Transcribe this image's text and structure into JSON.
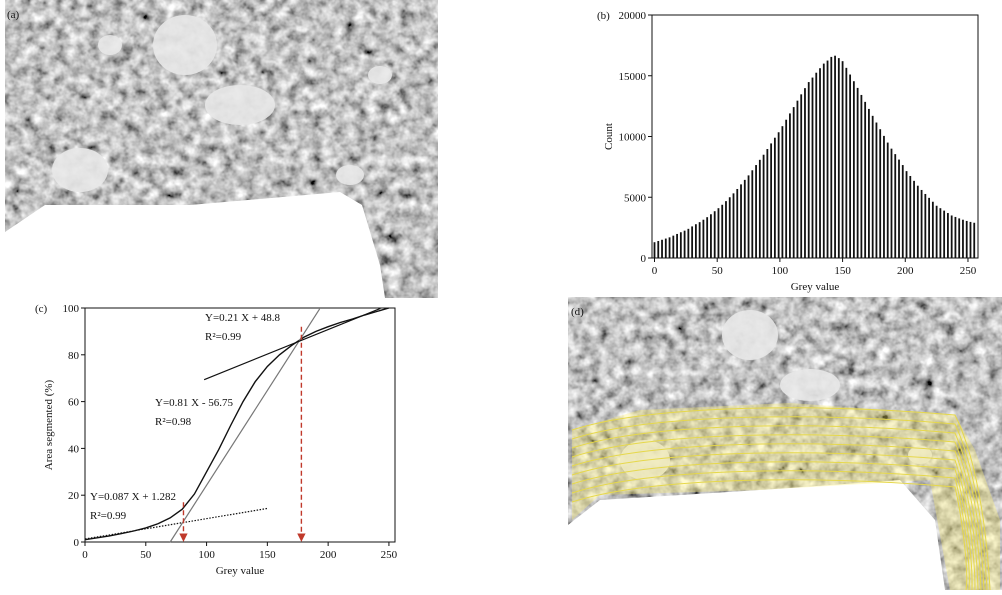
{
  "panels": {
    "a": "(a)",
    "d": "(d)"
  },
  "chart_data": [
    {
      "type": "bar",
      "panel_label": "(b)",
      "xlabel": "Grey value",
      "ylabel": "Count",
      "color": "#111111",
      "xlim": [
        -2,
        258
      ],
      "ylim": [
        0,
        20000
      ],
      "xticks": [
        0,
        50,
        100,
        150,
        200,
        250
      ],
      "yticks": [
        0,
        5000,
        10000,
        15000,
        20000
      ],
      "x": [
        0,
        3,
        6,
        9,
        12,
        15,
        18,
        21,
        24,
        27,
        30,
        33,
        36,
        39,
        42,
        45,
        48,
        51,
        54,
        57,
        60,
        63,
        66,
        69,
        72,
        75,
        78,
        81,
        84,
        87,
        90,
        93,
        96,
        99,
        102,
        105,
        108,
        111,
        114,
        117,
        120,
        123,
        126,
        129,
        132,
        135,
        138,
        141,
        144,
        147,
        150,
        153,
        156,
        159,
        162,
        165,
        168,
        171,
        174,
        177,
        180,
        183,
        186,
        189,
        192,
        195,
        198,
        201,
        204,
        207,
        210,
        213,
        216,
        219,
        222,
        225,
        228,
        231,
        234,
        237,
        240,
        243,
        246,
        249,
        252,
        255
      ],
      "values": [
        1300,
        1400,
        1500,
        1600,
        1700,
        1840,
        1980,
        2120,
        2250,
        2400,
        2600,
        2780,
        2950,
        3150,
        3360,
        3600,
        3850,
        4100,
        4380,
        4680,
        5000,
        5320,
        5680,
        6060,
        6430,
        6800,
        7220,
        7650,
        8080,
        8500,
        8970,
        9430,
        9900,
        10350,
        10850,
        11380,
        11900,
        12420,
        12950,
        13470,
        13980,
        14480,
        14850,
        15250,
        15620,
        16000,
        16250,
        16550,
        16650,
        16450,
        16200,
        15650,
        15100,
        14550,
        14000,
        13420,
        12850,
        12270,
        11700,
        11150,
        10600,
        10050,
        9500,
        9000,
        8550,
        8100,
        7650,
        7150,
        6750,
        6350,
        5950,
        5600,
        5270,
        4950,
        4630,
        4300,
        4100,
        3900,
        3700,
        3500,
        3380,
        3260,
        3150,
        3050,
        2970,
        2900
      ]
    },
    {
      "type": "line",
      "panel_label": "(c)",
      "xlabel": "Grey value",
      "ylabel": "Area segmented (%)",
      "xlim": [
        0,
        255
      ],
      "ylim": [
        0,
        100
      ],
      "xticks": [
        0,
        50,
        100,
        150,
        200,
        250
      ],
      "yticks": [
        0,
        20,
        40,
        60,
        80,
        100
      ],
      "x": [
        0,
        10,
        20,
        30,
        40,
        50,
        60,
        70,
        80,
        90,
        100,
        110,
        120,
        130,
        140,
        150,
        160,
        170,
        180,
        190,
        200,
        210,
        220,
        230,
        240,
        250
      ],
      "series": [
        {
          "color": "#111111",
          "values": [
            1,
            1.8,
            2.6,
            3.6,
            4.7,
            6,
            7.8,
            10.3,
            14,
            20.5,
            30,
            39.5,
            50,
            60,
            68.5,
            75,
            80,
            84,
            87.5,
            90,
            92,
            93.8,
            95.3,
            97,
            98.5,
            100
          ]
        }
      ],
      "fits": [
        {
          "equation": "Y=0.087 X + 1.282",
          "r2": "R²=0.99",
          "style": "dotted",
          "color": "#111111",
          "x": [
            0,
            150
          ],
          "values": [
            1.282,
            14.332
          ]
        },
        {
          "equation": "Y=0.81 X - 56.75",
          "r2": "R²=0.98",
          "style": "solid",
          "color": "#777777",
          "x": [
            70,
            193
          ],
          "values": [
            -0.05,
            99.58
          ]
        },
        {
          "equation": "Y=0.21 X + 48.8",
          "r2": "R²=0.99",
          "style": "solid",
          "color": "#111111",
          "x": [
            98,
            243
          ],
          "values": [
            69.38,
            99.83
          ]
        }
      ],
      "arrows": [
        {
          "x": 81,
          "top": 17,
          "color": "#c0392b"
        },
        {
          "x": 178,
          "top": 92,
          "color": "#c0392b"
        }
      ]
    }
  ]
}
